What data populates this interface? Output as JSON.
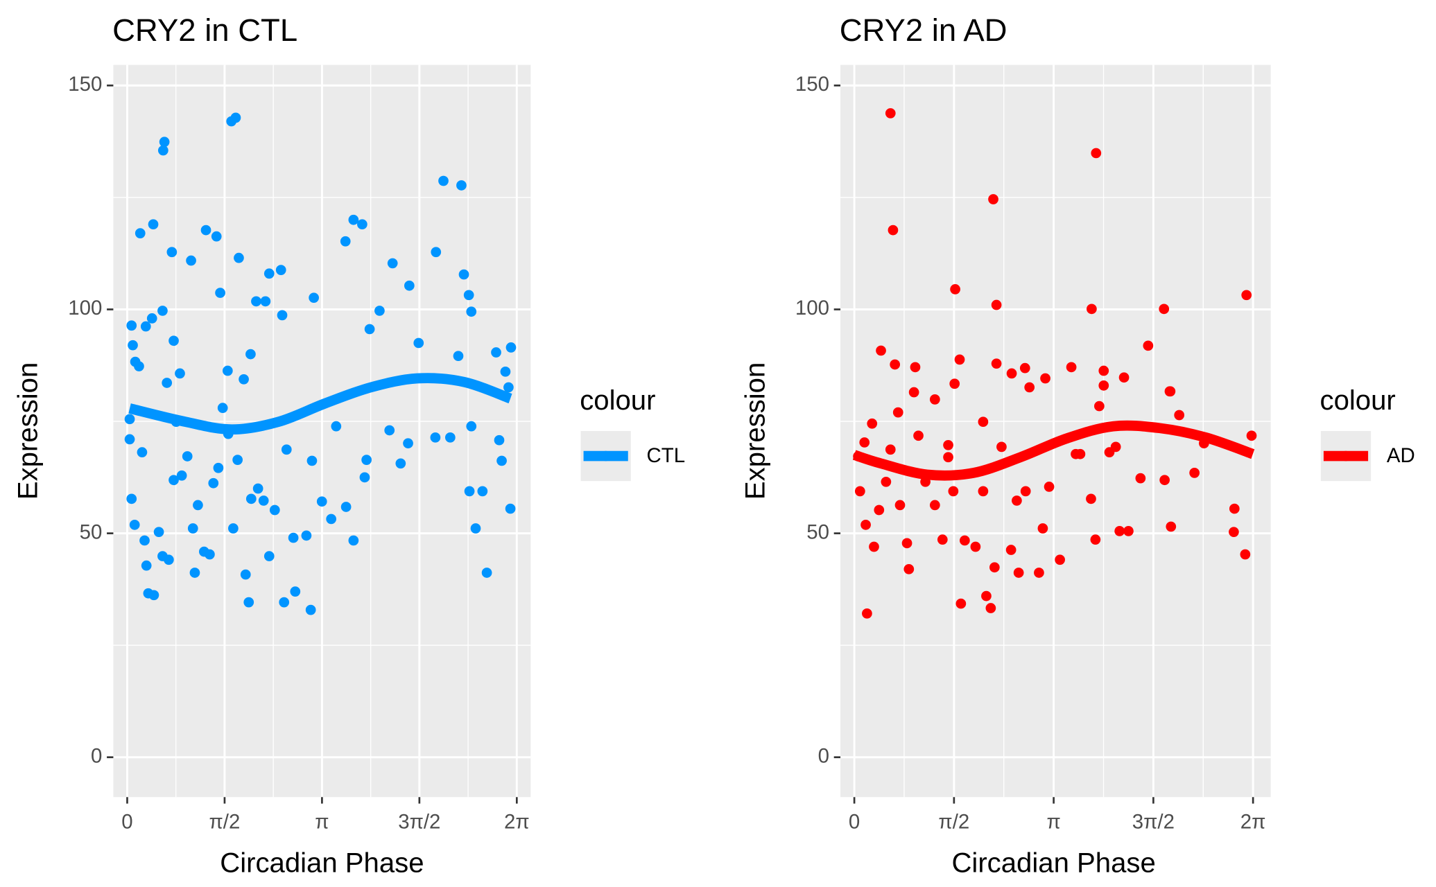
{
  "chart_data": [
    {
      "type": "scatter",
      "title": "CRY2 in CTL",
      "x_label": "Circadian Phase",
      "y_label": "Expression",
      "xlim": [
        -0.224,
        6.507
      ],
      "ylim": [
        -8.9,
        154.6
      ],
      "xticks": [
        {
          "value": 0,
          "label": "0"
        },
        {
          "value": 1.5708,
          "label": "π/2"
        },
        {
          "value": 3.1416,
          "label": "π"
        },
        {
          "value": 4.7124,
          "label": "3π/2"
        },
        {
          "value": 6.2832,
          "label": "2π"
        }
      ],
      "yticks": [
        0,
        50,
        100,
        150
      ],
      "grid": true,
      "legend_title": "colour",
      "legend": "right",
      "series": [
        {
          "name": "CTL",
          "color": "#0094ff",
          "x": [
            0.07,
            0.09,
            0.13,
            0.19,
            0.21,
            0.3,
            0.42,
            0.4,
            0.57,
            0.6,
            0.58,
            0.72,
            0.75,
            0.64,
            0.85,
            1.03,
            1.27,
            1.44,
            1.5,
            1.62,
            1.68,
            1.75,
            1.8,
            1.88,
            1.99,
            2.08,
            2.23,
            2.29,
            2.48,
            2.5,
            3.01,
            3.52,
            3.65,
            3.79,
            3.91,
            4.07,
            4.28,
            4.55,
            4.7,
            5.1,
            5.39,
            4.98,
            5.43,
            5.51,
            5.55,
            5.34,
            5.95,
            6.19,
            6.1,
            6.15,
            0.04,
            0.04,
            0.07,
            0.12,
            0.24,
            0.28,
            0.31,
            0.34,
            0.43,
            0.51,
            0.57,
            0.67,
            0.75,
            0.79,
            0.88,
            0.97,
            1.06,
            1.09,
            1.14,
            1.24,
            1.33,
            1.39,
            1.47,
            1.54,
            1.63,
            1.71,
            1.78,
            1.91,
            1.96,
            2.0,
            2.11,
            2.2,
            2.29,
            2.38,
            2.53,
            2.57,
            2.68,
            2.71,
            2.89,
            2.96,
            2.98,
            3.14,
            3.29,
            3.37,
            3.53,
            3.65,
            3.83,
            3.86,
            4.23,
            4.41,
            4.53,
            4.97,
            5.21,
            5.55,
            5.52,
            5.73,
            5.62,
            5.8,
            6.0,
            6.04,
            6.18
          ],
          "values": [
            96.4,
            92,
            88.3,
            87.3,
            117,
            96.2,
            119,
            98,
            99.7,
            137.4,
            135.5,
            112.8,
            93,
            83.6,
            85.7,
            110.9,
            117.7,
            116.3,
            103.7,
            86.3,
            142,
            142.8,
            111.5,
            84.4,
            90,
            101.8,
            101.8,
            108,
            108.8,
            98.7,
            102.6,
            115.2,
            120,
            119,
            95.6,
            99.7,
            110.3,
            105.3,
            92.5,
            128.7,
            127.7,
            112.8,
            107.8,
            103.2,
            99.5,
            89.6,
            90.4,
            91.5,
            86.1,
            82.6,
            75.5,
            71,
            57.7,
            51.9,
            68.1,
            48.4,
            42.8,
            36.6,
            36.2,
            50.3,
            44.9,
            44.1,
            61.9,
            74.9,
            62.9,
            67.2,
            51.1,
            41.2,
            56.3,
            45.9,
            45.3,
            61.2,
            64.6,
            78,
            72.2,
            51.1,
            66.4,
            40.8,
            34.6,
            57.7,
            60,
            57.3,
            44.9,
            55.2,
            34.6,
            68.7,
            49,
            37,
            49.5,
            32.9,
            66.2,
            57.1,
            53.2,
            73.9,
            55.9,
            48.4,
            62.5,
            66.4,
            73,
            65.6,
            70.1,
            71.4,
            71.4,
            73.9,
            59.4,
            59.4,
            51.1,
            41.2,
            70.8,
            66.2,
            55.5
          ]
        }
      ],
      "fit": {
        "x": [
          0.04,
          0.94,
          1.69,
          2.44,
          3.19,
          3.93,
          4.68,
          5.43,
          6.18
        ],
        "values": [
          77.9,
          74.9,
          73.2,
          74.9,
          79,
          82.6,
          84.6,
          83.8,
          80.1
        ]
      }
    },
    {
      "type": "scatter",
      "title": "CRY2 in AD",
      "x_label": "Circadian Phase",
      "y_label": "Expression",
      "xlim": [
        -0.219,
        6.562
      ],
      "ylim": [
        -8.9,
        154.6
      ],
      "xticks": [
        {
          "value": 0,
          "label": "0"
        },
        {
          "value": 1.5708,
          "label": "π/2"
        },
        {
          "value": 3.1416,
          "label": "π"
        },
        {
          "value": 4.7124,
          "label": "3π/2"
        },
        {
          "value": 6.2832,
          "label": "2π"
        }
      ],
      "yticks": [
        0,
        50,
        100,
        150
      ],
      "grid": true,
      "legend_title": "colour",
      "legend": "right",
      "series": [
        {
          "name": "AD",
          "color": "#ff0000",
          "x": [
            0.57,
            0.61,
            1.59,
            2.19,
            2.24,
            3.81,
            3.74,
            4.88,
            6.18,
            0.42,
            0.64,
            0.96,
            1.66,
            2.24,
            2.48,
            2.69,
            2.76,
            3.01,
            3.42,
            3.93,
            4.25,
            4.63,
            4.98,
            1.58,
            0.94,
            1.27,
            0.69,
            0.28,
            0.16,
            0.06,
            0.09,
            0.18,
            0.31,
            0.39,
            0.5,
            0.57,
            0.72,
            0.83,
            0.86,
            1.01,
            1.12,
            1.27,
            1.39,
            1.48,
            1.56,
            1.68,
            1.74,
            1.91,
            2.03,
            2.08,
            2.15,
            2.21,
            2.32,
            2.47,
            2.56,
            2.59,
            2.7,
            2.91,
            2.97,
            3.07,
            3.24,
            3.56,
            3.73,
            3.8,
            3.86,
            3.93,
            4.02,
            4.12,
            4.18,
            4.32,
            4.51,
            4.89,
            4.97,
            5.12,
            4.99,
            5.36,
            5.51,
            5.99,
            5.98,
            6.16,
            6.26,
            0.2,
            3.49,
            2.03,
            1.48
          ],
          "values": [
            143.8,
            117.7,
            104.5,
            124.6,
            101,
            134.9,
            100.1,
            100.1,
            103.2,
            90.8,
            87.7,
            87.1,
            88.8,
            87.9,
            85.7,
            86.9,
            82.6,
            84.6,
            87.1,
            86.3,
            84.8,
            91.9,
            81.7,
            83.4,
            81.5,
            79.9,
            77,
            74.5,
            70.3,
            67.2,
            59.4,
            51.9,
            47,
            55.2,
            61.5,
            68.7,
            56.3,
            47.8,
            42,
            71.8,
            61.5,
            56.3,
            48.6,
            69.7,
            59.4,
            34.3,
            48.4,
            47,
            59.4,
            36,
            33.3,
            42.4,
            69.3,
            46.3,
            57.3,
            41.2,
            59.4,
            41.2,
            51.1,
            60.4,
            44.1,
            67.7,
            57.7,
            48.6,
            78.4,
            83,
            68.1,
            69.3,
            50.5,
            50.5,
            62.3,
            61.9,
            81.7,
            76.4,
            51.5,
            63.5,
            70.1,
            55.5,
            50.3,
            45.3,
            71.8,
            32.1,
            67.7,
            74.9,
            67
          ]
        }
      ],
      "fit": {
        "x": [
          0,
          0.42,
          1.15,
          1.88,
          2.62,
          3.35,
          4.08,
          4.81,
          5.54,
          6.28
        ],
        "values": [
          67.5,
          65.6,
          63.1,
          63.5,
          67,
          71.2,
          73.9,
          73.5,
          71.4,
          67.7
        ]
      }
    }
  ]
}
